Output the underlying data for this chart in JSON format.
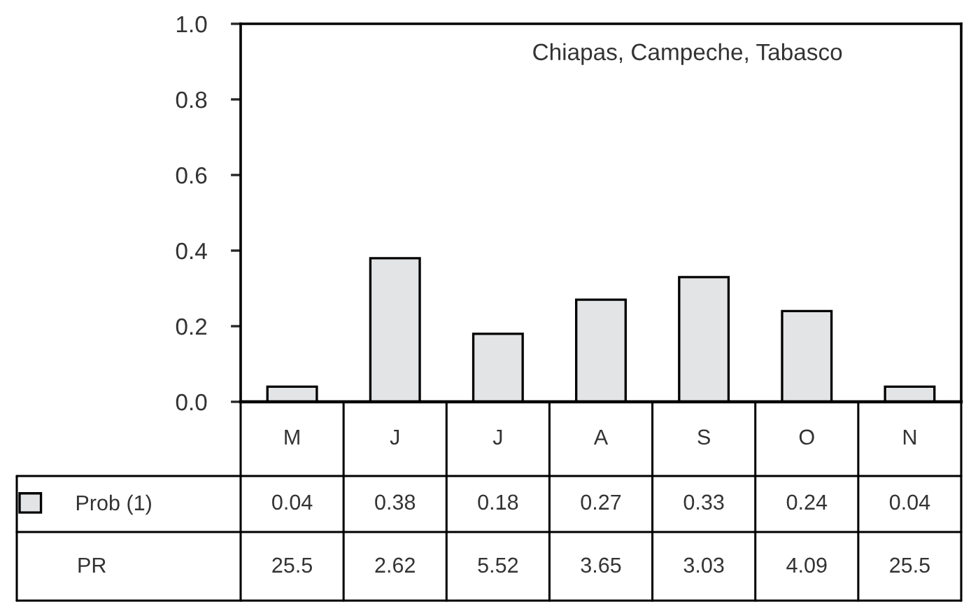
{
  "chart_data": {
    "type": "bar",
    "categories": [
      "M",
      "J",
      "J",
      "A",
      "S",
      "O",
      "N"
    ],
    "series": [
      {
        "name": "Prob (1)",
        "color": "#e3e4e6",
        "values": [
          0.04,
          0.38,
          0.18,
          0.27,
          0.33,
          0.24,
          0.04
        ]
      },
      {
        "name": "PR",
        "type": "other",
        "values": [
          null,
          null,
          null,
          null,
          null,
          null,
          null
        ],
        "value_labels": [
          "25.5",
          "2.62",
          "5.52",
          "3.65",
          "3.03",
          "4.09",
          "25.5"
        ]
      }
    ],
    "data_labels": true,
    "annotations": [
      "Chiapas, Campeche, Tabasco"
    ],
    "ylim": [
      0,
      1.0
    ],
    "yticks": [
      {
        "value": 0,
        "label": "0.0"
      },
      {
        "value": 0.2,
        "label": "0.2"
      },
      {
        "value": 0.4,
        "label": "0.4"
      },
      {
        "value": 0.6,
        "label": "0.6"
      },
      {
        "value": 0.8,
        "label": "0.8"
      },
      {
        "value": 1.0,
        "label": "1.0"
      }
    ],
    "grid": false,
    "legend": "bottom left"
  }
}
